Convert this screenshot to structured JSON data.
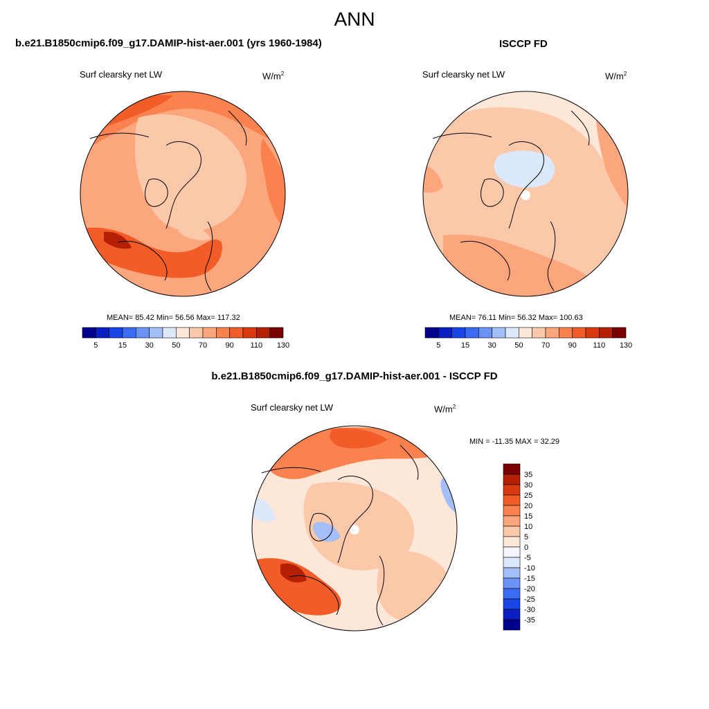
{
  "figure": {
    "title": "ANN",
    "accent_colors": {
      "low": "#00008b",
      "zero": "#f5f5ff",
      "high": "#7a0000"
    }
  },
  "panels": [
    {
      "title": "b.e21.B1850cmip6.f09_g17.DAMIP-hist-aer.001 (yrs 1960-1984)",
      "variable": "Surf clearsky net LW",
      "units_base": "W/m",
      "units_exp": "2",
      "stats": "MEAN=  85.42  Min=  56.56  Max= 117.32",
      "mean": 85.42,
      "min": 56.56,
      "max": 117.32
    },
    {
      "title": "ISCCP FD",
      "variable": "Surf clearsky net LW",
      "units_base": "W/m",
      "units_exp": "2",
      "stats": "MEAN=  76.11  Min=  56.32  Max= 100.63",
      "mean": 76.11,
      "min": 56.32,
      "max": 100.63
    },
    {
      "title": "b.e21.B1850cmip6.f09_g17.DAMIP-hist-aer.001 - ISCCP FD",
      "variable": "Surf clearsky net LW",
      "units_base": "W/m",
      "units_exp": "2",
      "stats": "MIN = -11.35 MAX =  32.29",
      "min": -11.35,
      "max": 32.29
    }
  ],
  "colorbar_abs": {
    "colors": [
      "#00008b",
      "#0a1fc2",
      "#1a45e6",
      "#3b6cf5",
      "#6b93f5",
      "#a4bef7",
      "#dce8fb",
      "#fde7d8",
      "#fcc8aa",
      "#fca67e",
      "#f9824f",
      "#f25c28",
      "#d93a10",
      "#b52005",
      "#7a0000"
    ],
    "labels": [
      "5",
      "15",
      "30",
      "50",
      "70",
      "90",
      "110",
      "130"
    ]
  },
  "colorbar_diff": {
    "colors": [
      "#7a0000",
      "#b52005",
      "#d93a10",
      "#f25c28",
      "#f9824f",
      "#fca67e",
      "#fcc8aa",
      "#fde7d8",
      "#f5f5ff",
      "#dce8fb",
      "#a4bef7",
      "#6b93f5",
      "#3b6cf5",
      "#1a45e6",
      "#0a1fc2",
      "#00008b"
    ],
    "labels": [
      "35",
      "30",
      "25",
      "20",
      "15",
      "10",
      "5",
      "0",
      "-5",
      "-10",
      "-15",
      "-20",
      "-25",
      "-30",
      "-35"
    ]
  }
}
